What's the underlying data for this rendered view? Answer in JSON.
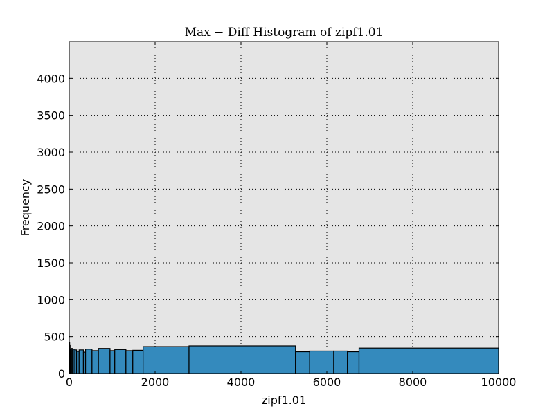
{
  "chart_data": {
    "type": "bar",
    "title": "Max − Diff Histogram of zipf1.01",
    "xlabel": "zipf1.01",
    "ylabel": "Frequency",
    "xlim": [
      0,
      10000
    ],
    "ylim": [
      0,
      4500
    ],
    "grid": true,
    "bar_color": "#348abd",
    "background_color": "#e5e5e5",
    "x_ticks": [
      {
        "value": 0,
        "label": "0"
      },
      {
        "value": 2000,
        "label": "2000"
      },
      {
        "value": 4000,
        "label": "4000"
      },
      {
        "value": 6000,
        "label": "6000"
      },
      {
        "value": 8000,
        "label": "8000"
      },
      {
        "value": 10000,
        "label": "10000"
      }
    ],
    "y_ticks": [
      {
        "value": 0,
        "label": "0"
      },
      {
        "value": 500,
        "label": "500"
      },
      {
        "value": 1000,
        "label": "1000"
      },
      {
        "value": 1500,
        "label": "1500"
      },
      {
        "value": 2000,
        "label": "2000"
      },
      {
        "value": 2500,
        "label": "2500"
      },
      {
        "value": 3000,
        "label": "3000"
      },
      {
        "value": 3500,
        "label": "3500"
      },
      {
        "value": 4000,
        "label": "4000"
      }
    ],
    "bins": [
      {
        "start": 0,
        "end": 10,
        "value": 420
      },
      {
        "start": 10,
        "end": 20,
        "value": 380
      },
      {
        "start": 20,
        "end": 35,
        "value": 330
      },
      {
        "start": 35,
        "end": 50,
        "value": 300
      },
      {
        "start": 50,
        "end": 70,
        "value": 340
      },
      {
        "start": 70,
        "end": 95,
        "value": 310
      },
      {
        "start": 95,
        "end": 130,
        "value": 330
      },
      {
        "start": 130,
        "end": 170,
        "value": 320
      },
      {
        "start": 170,
        "end": 230,
        "value": 300
      },
      {
        "start": 230,
        "end": 330,
        "value": 320
      },
      {
        "start": 330,
        "end": 380,
        "value": 290
      },
      {
        "start": 380,
        "end": 530,
        "value": 330
      },
      {
        "start": 530,
        "end": 680,
        "value": 310
      },
      {
        "start": 680,
        "end": 950,
        "value": 340
      },
      {
        "start": 950,
        "end": 1060,
        "value": 310
      },
      {
        "start": 1060,
        "end": 1320,
        "value": 325
      },
      {
        "start": 1320,
        "end": 1480,
        "value": 310
      },
      {
        "start": 1480,
        "end": 1720,
        "value": 315
      },
      {
        "start": 1720,
        "end": 2790,
        "value": 365
      },
      {
        "start": 2790,
        "end": 5270,
        "value": 375
      },
      {
        "start": 5270,
        "end": 5600,
        "value": 295
      },
      {
        "start": 5600,
        "end": 6160,
        "value": 305
      },
      {
        "start": 6160,
        "end": 6480,
        "value": 305
      },
      {
        "start": 6480,
        "end": 6750,
        "value": 295
      },
      {
        "start": 6750,
        "end": 10000,
        "value": 345
      }
    ]
  }
}
